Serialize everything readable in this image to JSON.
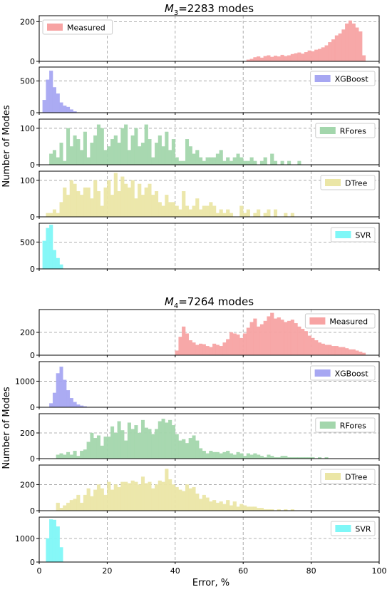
{
  "figure": {
    "ylabel": "Number of Modes",
    "xlabel": "Error, %",
    "xlim": [
      0,
      100
    ],
    "xticks": [
      0,
      20,
      40,
      60,
      80,
      100
    ],
    "grid": true,
    "legend_placement": "top-right"
  },
  "colors": {
    "Measured": "#f7a3a3",
    "XGBoost": "#a7a7f2",
    "RFores": "#a3d6ac",
    "DTree": "#ebe6a6",
    "SVR": "#7ff7f7"
  },
  "chart_data": [
    {
      "type": "histogram",
      "title": "M_3=2283 modes",
      "title_parts": {
        "italic": "M",
        "sub": "3",
        "rest": "=2283 modes"
      },
      "bin_width": 1,
      "panels": [
        {
          "name": "Measured",
          "ylim": [
            0,
            230
          ],
          "yticks": [
            0,
            200
          ],
          "x": [
            61,
            62,
            63,
            64,
            65,
            66,
            67,
            68,
            69,
            70,
            71,
            72,
            73,
            74,
            75,
            76,
            77,
            78,
            79,
            80,
            81,
            82,
            83,
            84,
            85,
            86,
            87,
            88,
            89,
            90,
            91,
            92,
            93,
            94,
            95
          ],
          "values": [
            8,
            12,
            20,
            24,
            18,
            26,
            30,
            22,
            28,
            24,
            32,
            26,
            30,
            36,
            40,
            44,
            38,
            46,
            54,
            50,
            58,
            62,
            70,
            80,
            96,
            110,
            130,
            140,
            160,
            190,
            205,
            190,
            170,
            150,
            30
          ]
        },
        {
          "name": "XGBoost",
          "ylim": [
            0,
            720
          ],
          "yticks": [
            0,
            500
          ],
          "x": [
            1,
            2,
            3,
            4,
            5,
            6,
            7,
            8,
            9,
            10
          ],
          "values": [
            200,
            520,
            660,
            400,
            300,
            160,
            110,
            90,
            50,
            20
          ]
        },
        {
          "name": "RFores",
          "ylim": [
            0,
            125
          ],
          "yticks": [
            0,
            100
          ],
          "x": [
            3,
            4,
            5,
            6,
            7,
            8,
            9,
            10,
            11,
            12,
            13,
            14,
            15,
            16,
            17,
            18,
            19,
            20,
            21,
            22,
            23,
            24,
            25,
            26,
            27,
            28,
            29,
            30,
            31,
            32,
            33,
            34,
            35,
            36,
            37,
            38,
            39,
            40,
            41,
            42,
            43,
            44,
            45,
            46,
            47,
            48,
            49,
            50,
            51,
            52,
            53,
            54,
            55,
            56,
            57,
            58,
            59,
            60,
            61,
            62,
            63,
            64,
            65,
            66,
            67,
            68,
            69,
            70,
            71,
            72,
            73,
            74,
            75,
            76,
            77,
            78,
            79,
            80,
            81,
            82,
            83,
            84,
            85,
            86,
            87,
            88,
            89,
            90,
            91,
            92,
            93,
            94
          ],
          "values": [
            30,
            40,
            20,
            60,
            10,
            100,
            50,
            80,
            70,
            40,
            90,
            20,
            60,
            80,
            110,
            100,
            40,
            50,
            70,
            80,
            60,
            100,
            110,
            40,
            80,
            100,
            50,
            60,
            110,
            70,
            20,
            60,
            80,
            50,
            90,
            40,
            70,
            20,
            10,
            10,
            70,
            50,
            30,
            40,
            20,
            10,
            20,
            20,
            20,
            30,
            40,
            10,
            20,
            10,
            20,
            30,
            20,
            10,
            10,
            20,
            10,
            0,
            10,
            20,
            0,
            30,
            10,
            0,
            10,
            0,
            10,
            0,
            0,
            10,
            0,
            0,
            0,
            0,
            0,
            0,
            0,
            0,
            0,
            0,
            0,
            0,
            0,
            0,
            0,
            0,
            0,
            0
          ]
        },
        {
          "name": "DTree",
          "ylim": [
            0,
            125
          ],
          "yticks": [
            0,
            100
          ],
          "x": [
            2,
            3,
            4,
            5,
            6,
            7,
            8,
            9,
            10,
            11,
            12,
            13,
            14,
            15,
            16,
            17,
            18,
            19,
            20,
            21,
            22,
            23,
            24,
            25,
            26,
            27,
            28,
            29,
            30,
            31,
            32,
            33,
            34,
            35,
            36,
            37,
            38,
            39,
            40,
            41,
            42,
            43,
            44,
            45,
            46,
            47,
            48,
            49,
            50,
            51,
            52,
            53,
            54,
            55,
            56,
            57,
            58,
            59,
            60,
            61,
            62,
            63,
            64,
            65,
            66,
            67,
            68,
            69,
            70,
            71,
            72,
            73,
            74,
            75,
            76,
            77,
            78,
            79,
            80
          ],
          "values": [
            10,
            10,
            20,
            10,
            40,
            80,
            60,
            100,
            90,
            70,
            60,
            80,
            80,
            50,
            100,
            70,
            30,
            80,
            100,
            60,
            120,
            70,
            110,
            90,
            80,
            100,
            50,
            90,
            60,
            80,
            90,
            60,
            70,
            40,
            30,
            60,
            40,
            40,
            30,
            20,
            70,
            30,
            20,
            30,
            50,
            20,
            30,
            30,
            40,
            30,
            10,
            20,
            10,
            20,
            10,
            0,
            0,
            30,
            10,
            20,
            0,
            10,
            20,
            0,
            10,
            20,
            0,
            20,
            0,
            0,
            10,
            0,
            10,
            0,
            0,
            0,
            0,
            0,
            0
          ]
        },
        {
          "name": "SVR",
          "ylim": [
            0,
            850
          ],
          "yticks": [
            0,
            500
          ],
          "x": [
            1,
            2,
            3,
            4,
            5,
            6
          ],
          "values": [
            520,
            760,
            820,
            350,
            200,
            80
          ]
        }
      ]
    },
    {
      "type": "histogram",
      "title": "M_4=7264 modes",
      "title_parts": {
        "italic": "M",
        "sub": "4",
        "rest": "=7264 modes"
      },
      "bin_width": 1,
      "panels": [
        {
          "name": "Measured",
          "ylim": [
            0,
            400
          ],
          "yticks": [
            0,
            200
          ],
          "x": [
            40,
            41,
            42,
            43,
            44,
            45,
            46,
            47,
            48,
            49,
            50,
            51,
            52,
            53,
            54,
            55,
            56,
            57,
            58,
            59,
            60,
            61,
            62,
            63,
            64,
            65,
            66,
            67,
            68,
            69,
            70,
            71,
            72,
            73,
            74,
            75,
            76,
            77,
            78,
            79,
            80,
            81,
            82,
            83,
            84,
            85,
            86,
            87,
            88,
            89,
            90,
            91,
            92,
            93,
            94,
            95
          ],
          "values": [
            40,
            160,
            250,
            190,
            130,
            110,
            90,
            100,
            95,
            80,
            70,
            100,
            90,
            80,
            110,
            140,
            200,
            190,
            180,
            150,
            190,
            240,
            290,
            320,
            250,
            270,
            300,
            340,
            370,
            320,
            330,
            310,
            290,
            300,
            310,
            280,
            250,
            230,
            210,
            170,
            150,
            130,
            110,
            100,
            90,
            90,
            80,
            80,
            70,
            70,
            60,
            50,
            50,
            40,
            30,
            20
          ]
        },
        {
          "name": "XGBoost",
          "ylim": [
            0,
            1750
          ],
          "yticks": [
            0,
            1000
          ],
          "x": [
            3,
            4,
            5,
            6,
            7,
            8,
            9,
            10,
            11,
            12,
            13
          ],
          "values": [
            150,
            550,
            1300,
            1550,
            1050,
            650,
            350,
            200,
            100,
            60,
            30
          ]
        },
        {
          "name": "RFores",
          "ylim": [
            0,
            350
          ],
          "yticks": [
            0,
            200
          ],
          "x": [
            5,
            6,
            7,
            8,
            9,
            10,
            11,
            12,
            13,
            14,
            15,
            16,
            17,
            18,
            19,
            20,
            21,
            22,
            23,
            24,
            25,
            26,
            27,
            28,
            29,
            30,
            31,
            32,
            33,
            34,
            35,
            36,
            37,
            38,
            39,
            40,
            41,
            42,
            43,
            44,
            45,
            46,
            47,
            48,
            49,
            50,
            51,
            52,
            53,
            54,
            55,
            56,
            57,
            58,
            59,
            60,
            61,
            62,
            63,
            64,
            65,
            66,
            67,
            68,
            69,
            70,
            71,
            72,
            73,
            74,
            75,
            76,
            77,
            78,
            79,
            80,
            81,
            82,
            83,
            84
          ],
          "values": [
            30,
            40,
            30,
            50,
            30,
            60,
            20,
            60,
            70,
            130,
            200,
            160,
            180,
            100,
            170,
            170,
            250,
            200,
            290,
            220,
            140,
            280,
            230,
            260,
            200,
            300,
            240,
            230,
            190,
            230,
            290,
            310,
            280,
            300,
            260,
            190,
            140,
            150,
            120,
            160,
            180,
            140,
            80,
            60,
            40,
            60,
            50,
            50,
            40,
            50,
            60,
            40,
            30,
            50,
            40,
            20,
            40,
            30,
            40,
            30,
            20,
            10,
            30,
            20,
            10,
            10,
            20,
            20,
            10,
            10,
            10,
            10,
            10,
            10,
            10,
            10,
            0,
            10,
            0,
            10
          ]
        },
        {
          "name": "DTree",
          "ylim": [
            0,
            350
          ],
          "yticks": [
            0,
            200
          ],
          "x": [
            5,
            6,
            7,
            8,
            9,
            10,
            11,
            12,
            13,
            14,
            15,
            16,
            17,
            18,
            19,
            20,
            21,
            22,
            23,
            24,
            25,
            26,
            27,
            28,
            29,
            30,
            31,
            32,
            33,
            34,
            35,
            36,
            37,
            38,
            39,
            40,
            41,
            42,
            43,
            44,
            45,
            46,
            47,
            48,
            49,
            50,
            51,
            52,
            53,
            54,
            55,
            56,
            57,
            58,
            59,
            60,
            61,
            62,
            63,
            64,
            65,
            66,
            67,
            68,
            69,
            70,
            71,
            72,
            73,
            74,
            75,
            76,
            77,
            78,
            79,
            80,
            81,
            82,
            83,
            84
          ],
          "values": [
            60,
            20,
            40,
            60,
            80,
            90,
            120,
            60,
            120,
            170,
            110,
            160,
            200,
            170,
            120,
            220,
            160,
            200,
            180,
            220,
            220,
            210,
            230,
            220,
            200,
            260,
            210,
            220,
            170,
            200,
            230,
            220,
            320,
            240,
            200,
            180,
            160,
            150,
            200,
            170,
            180,
            130,
            90,
            120,
            100,
            70,
            80,
            60,
            70,
            50,
            80,
            40,
            70,
            30,
            50,
            40,
            30,
            30,
            30,
            20,
            20,
            10,
            10,
            10,
            0,
            10,
            0,
            10,
            0,
            10,
            0,
            0,
            0,
            0,
            0,
            0,
            0,
            0,
            0,
            0
          ]
        },
        {
          "name": "SVR",
          "ylim": [
            0,
            1900
          ],
          "yticks": [
            0,
            1000
          ],
          "x": [
            2,
            3,
            4,
            5,
            6
          ],
          "values": [
            1000,
            1800,
            1780,
            1500,
            620
          ]
        }
      ]
    }
  ]
}
